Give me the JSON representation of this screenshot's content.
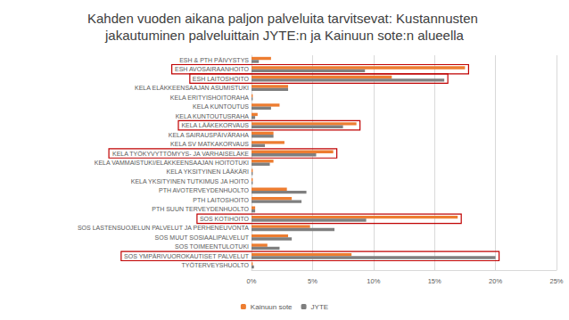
{
  "chart_data": {
    "type": "bar",
    "orientation": "horizontal",
    "title": "Kahden vuoden aikana paljon palveluita tarvitsevat: Kustannusten jakautuminen palveluittain JYTE:n ja Kainuun sote:n alueella",
    "categories": [
      "ESH & PTH PÄIVYSTYS",
      "ESH AVOSAIRAANHOITO",
      "ESH LAITOSHOITO",
      "KELA ELÄKKEENSAAJAN ASUMISTUKI",
      "KELA ERITYISHOITORAHA",
      "KELA KUNTOUTUS",
      "KELA KUNTOUTUSRAHA",
      "KELA LÄÄKEKORVAUS",
      "KELA SAIRAUSPÄIVÄRAHA",
      "KELA SV MATKAKORVAUS",
      "KELA TYÖKYVYTTÖMYYS- JA VARHAISELÄKE",
      "KELA VAMMAISTUKI/ELÄKKEENSAAJAN HOITOTUKI",
      "KELA YKSITYINEN LÄÄKÄRI",
      "KELA YKSITYINEN TUTKIMUS JA HOITO",
      "PTH AVOTERVEYDENHUOLTO",
      "PTH LAITOSHOITO",
      "PTH SUUN TERVEYDENHUOLTO",
      "SOS KOTIHOITO",
      "SOS LASTENSUOJELUN PALVELUT JA PERHENEUVONTA",
      "SOS MUUT SOSIAALIPALVELUT",
      "SOS TOIMEENTULOTUKI",
      "SOS YMPÄRIVUOROKAUTISET PALVELUT",
      "TYÖTERVEYSHUOLTO"
    ],
    "series": [
      {
        "name": "Kainuun sote",
        "color": "#ed7d31",
        "values": [
          1.6,
          17.5,
          11.5,
          3.0,
          0.1,
          2.3,
          0.5,
          8.6,
          1.8,
          2.7,
          6.7,
          1.8,
          0.1,
          0.1,
          2.9,
          3.3,
          0.3,
          16.9,
          4.8,
          3.0,
          1.3,
          8.2,
          0.1
        ]
      },
      {
        "name": "JYTE",
        "color": "#7f7f7f",
        "values": [
          0.6,
          9.3,
          15.8,
          3.0,
          0.1,
          1.6,
          0.3,
          7.5,
          1.8,
          1.1,
          5.3,
          1.5,
          0.1,
          0.1,
          4.5,
          4.1,
          0.3,
          9.4,
          6.8,
          3.3,
          2.3,
          20.0,
          0.2
        ]
      }
    ],
    "xlim": [
      0,
      25
    ],
    "xticks": [
      {
        "value": 0,
        "label": "0%"
      },
      {
        "value": 5,
        "label": "5%"
      },
      {
        "value": 10,
        "label": "10%"
      },
      {
        "value": 15,
        "label": "15%"
      },
      {
        "value": 20,
        "label": "20%"
      },
      {
        "value": 25,
        "label": "25%"
      }
    ],
    "grid": true,
    "legend": "bottom"
  }
}
